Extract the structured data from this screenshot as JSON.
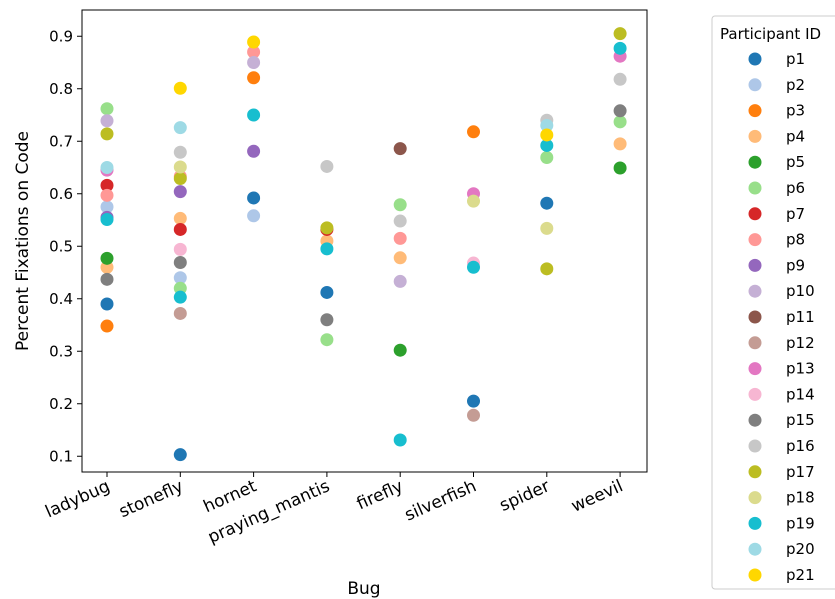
{
  "chart_data": {
    "type": "scatter",
    "title": "",
    "xlabel": "Bug",
    "ylabel": "Percent Fixations on Code",
    "categories": [
      "ladybug",
      "stonefly",
      "hornet",
      "praying_mantis",
      "firefly",
      "silverfish",
      "spider",
      "weevil"
    ],
    "ylim": [
      0.07,
      0.95
    ],
    "yticks": [
      "0.1",
      "0.2",
      "0.3",
      "0.4",
      "0.5",
      "0.6",
      "0.7",
      "0.8",
      "0.9"
    ],
    "grid": false,
    "legend": {
      "title": "Participant ID",
      "placement": "right-outside"
    },
    "series": [
      {
        "name": "p1",
        "color": "#1f77b4",
        "values": [
          0.39,
          0.103,
          0.592,
          0.412,
          null,
          0.205,
          0.582,
          null
        ]
      },
      {
        "name": "p2",
        "color": "#aec7e8",
        "values": [
          0.575,
          0.44,
          0.558,
          null,
          null,
          null,
          null,
          null
        ]
      },
      {
        "name": "p3",
        "color": "#ff7f0e",
        "values": [
          0.348,
          null,
          0.821,
          null,
          null,
          0.718,
          null,
          null
        ]
      },
      {
        "name": "p4",
        "color": "#ffbb78",
        "values": [
          0.46,
          0.553,
          null,
          0.51,
          0.478,
          null,
          null,
          0.695
        ]
      },
      {
        "name": "p5",
        "color": "#2ca02c",
        "values": [
          0.477,
          null,
          null,
          null,
          0.302,
          null,
          null,
          0.649
        ]
      },
      {
        "name": "p6",
        "color": "#98df8a",
        "values": [
          0.762,
          0.42,
          null,
          0.322,
          0.579,
          null,
          0.669,
          0.737
        ]
      },
      {
        "name": "p7",
        "color": "#d62728",
        "values": [
          0.616,
          0.532,
          null,
          0.532,
          null,
          null,
          null,
          null
        ]
      },
      {
        "name": "p8",
        "color": "#ff9896",
        "values": [
          0.597,
          0.633,
          0.87,
          null,
          0.515,
          null,
          null,
          null
        ]
      },
      {
        "name": "p9",
        "color": "#9467bd",
        "values": [
          0.555,
          0.604,
          0.681,
          null,
          null,
          null,
          null,
          null
        ]
      },
      {
        "name": "p10",
        "color": "#c5b0d5",
        "values": [
          0.739,
          null,
          0.85,
          null,
          0.433,
          null,
          null,
          null
        ]
      },
      {
        "name": "p11",
        "color": "#8c564b",
        "values": [
          null,
          null,
          null,
          null,
          0.686,
          null,
          null,
          null
        ]
      },
      {
        "name": "p12",
        "color": "#c49c94",
        "values": [
          null,
          0.372,
          null,
          null,
          null,
          0.178,
          null,
          null
        ]
      },
      {
        "name": "p13",
        "color": "#e377c2",
        "values": [
          0.645,
          null,
          null,
          null,
          null,
          0.6,
          null,
          0.862
        ]
      },
      {
        "name": "p14",
        "color": "#f7b6d2",
        "values": [
          null,
          0.494,
          null,
          null,
          null,
          0.468,
          null,
          null
        ]
      },
      {
        "name": "p15",
        "color": "#7f7f7f",
        "values": [
          0.437,
          0.469,
          null,
          0.36,
          null,
          null,
          null,
          0.758
        ]
      },
      {
        "name": "p16",
        "color": "#c7c7c7",
        "values": [
          null,
          0.679,
          null,
          0.652,
          0.548,
          null,
          0.74,
          0.818
        ]
      },
      {
        "name": "p17",
        "color": "#bcbd22",
        "values": [
          0.714,
          0.629,
          null,
          0.535,
          null,
          null,
          0.457,
          0.905
        ]
      },
      {
        "name": "p18",
        "color": "#dbdb8d",
        "values": [
          null,
          0.651,
          null,
          null,
          null,
          0.586,
          0.534,
          null
        ]
      },
      {
        "name": "p19",
        "color": "#17becf",
        "values": [
          0.551,
          0.403,
          0.75,
          0.495,
          0.131,
          0.46,
          0.692,
          0.877
        ]
      },
      {
        "name": "p20",
        "color": "#9edae5",
        "values": [
          0.65,
          0.726,
          null,
          null,
          null,
          null,
          0.73,
          null
        ]
      },
      {
        "name": "p21",
        "color": "#ffd700",
        "values": [
          null,
          0.801,
          0.889,
          null,
          null,
          null,
          0.712,
          null
        ]
      }
    ]
  }
}
